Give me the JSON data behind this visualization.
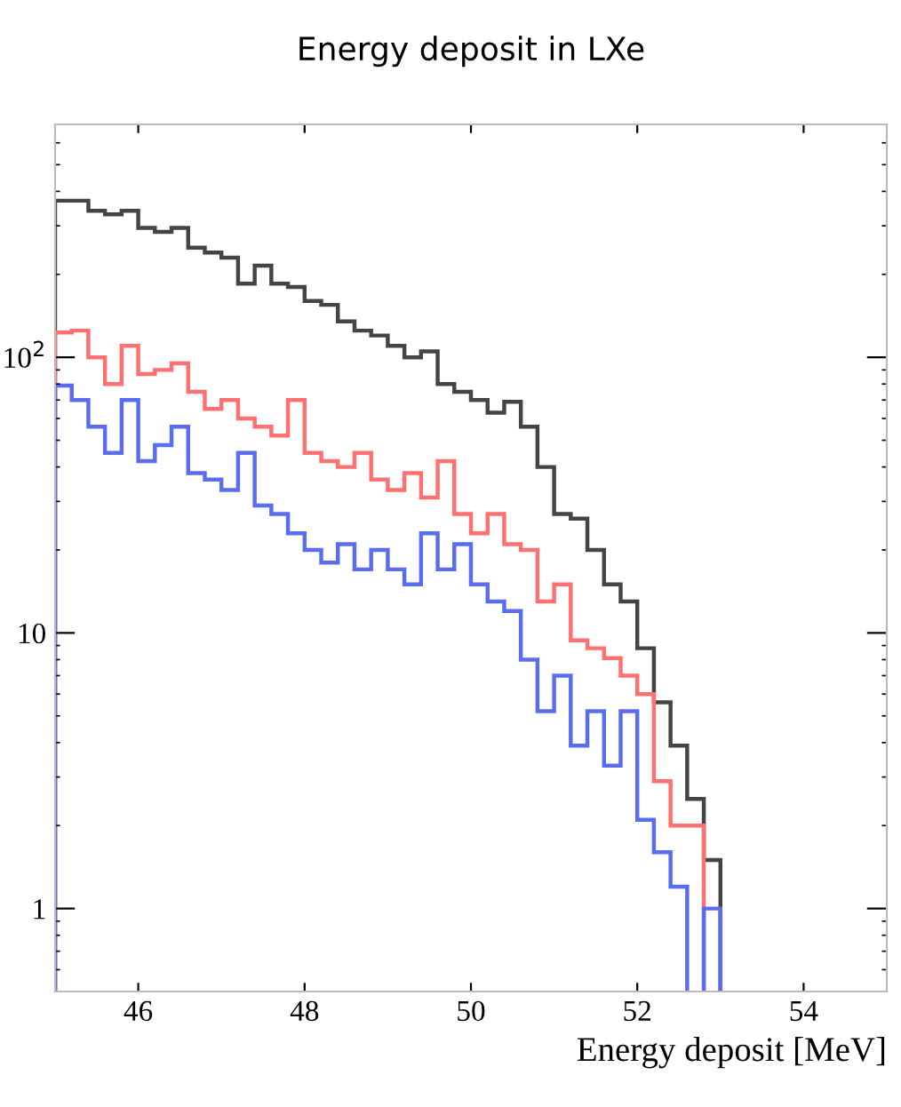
{
  "chart_data": {
    "type": "histogram",
    "title": "Energy deposit in LXe",
    "xlabel": "Energy deposit [MeV]",
    "bins": [
      45.0,
      45.2,
      45.4,
      45.6,
      45.8,
      46.0,
      46.2,
      46.4,
      46.6,
      46.8,
      47.0,
      47.2,
      47.4,
      47.6,
      47.8,
      48.0,
      48.2,
      48.4,
      48.6,
      48.8,
      49.0,
      49.2,
      49.4,
      49.6,
      49.8,
      50.0,
      50.2,
      50.4,
      50.6,
      50.8,
      51.0,
      51.2,
      51.4,
      51.6,
      51.8,
      52.0,
      52.2,
      52.4,
      52.6,
      52.8,
      53.0
    ],
    "series": [
      {
        "color": "#444444",
        "values": [
          370,
          370,
          340,
          330,
          340,
          295,
          285,
          295,
          250,
          240,
          230,
          185,
          215,
          185,
          180,
          160,
          155,
          135,
          125,
          120,
          110,
          100,
          105,
          80,
          75,
          70,
          63,
          69,
          56,
          40,
          27,
          26,
          20,
          15,
          13,
          8.8,
          5.6,
          3.9,
          2.5,
          1.5
        ]
      },
      {
        "color": "#ff7070",
        "bins": [
          45.0,
          45.2,
          45.4,
          45.6,
          45.8,
          46.0,
          46.2,
          46.4,
          46.6,
          46.8,
          47.0,
          47.2,
          47.4,
          47.6,
          47.8,
          48.0,
          48.2,
          48.4,
          48.6,
          48.8,
          49.0,
          49.2,
          49.4,
          49.6,
          49.8,
          50.0,
          50.2,
          50.4,
          50.6,
          50.8,
          51.0,
          51.2,
          51.4,
          51.6,
          51.8,
          52.0,
          52.2,
          52.4,
          52.6,
          52.8
        ],
        "values": [
          123,
          125,
          100,
          80,
          110,
          87,
          90,
          95,
          75,
          65,
          70,
          60,
          56,
          52,
          70,
          45,
          42,
          40,
          45,
          36,
          33,
          38,
          31,
          42,
          27,
          23,
          27,
          21,
          20,
          13,
          15,
          9.4,
          8.8,
          8.1,
          7,
          6,
          2.9,
          2,
          2
        ]
      },
      {
        "color": "#5a6cf0",
        "bins": [
          45.0,
          45.2,
          45.4,
          45.6,
          45.8,
          46.0,
          46.2,
          46.4,
          46.6,
          46.8,
          47.0,
          47.2,
          47.4,
          47.6,
          47.8,
          48.0,
          48.2,
          48.4,
          48.6,
          48.8,
          49.0,
          49.2,
          49.4,
          49.6,
          49.8,
          50.0,
          50.2,
          50.4,
          50.6,
          50.8,
          51.0,
          51.2,
          51.4,
          51.6,
          51.8,
          52.0,
          52.2,
          52.4,
          52.6
        ],
        "values": [
          79,
          70,
          56,
          45,
          70,
          42,
          48,
          56,
          38,
          36,
          33,
          45,
          29,
          27,
          23,
          20,
          18,
          21,
          17,
          20,
          17,
          15,
          23,
          17,
          21,
          15,
          13,
          12,
          8,
          5.2,
          7,
          3.9,
          5.2,
          3.3,
          5.2,
          2.1,
          1.6,
          1.2
        ]
      },
      {
        "color": "#5a6cf0",
        "bins": [
          52.8,
          53.0
        ],
        "values": [
          1
        ]
      }
    ],
    "log": "y",
    "xlim": [
      45,
      55
    ],
    "ylim": [
      0.5,
      700
    ],
    "xticks": [
      46,
      48,
      50,
      52,
      54
    ],
    "yticks": [
      1,
      10,
      {
        "value": 100,
        "label": "10$^{2}$"
      }
    ],
    "grid": false,
    "legend": false
  }
}
